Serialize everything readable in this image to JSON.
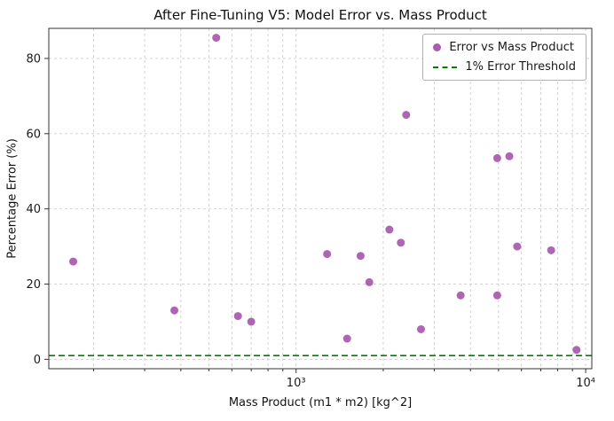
{
  "chart_data": {
    "type": "scatter",
    "title": "After Fine-Tuning V5: Model Error vs. Mass Product",
    "xlabel": "Mass Product (m1 * m2) [kg^2]",
    "ylabel": "Percentage Error (%)",
    "x_scale": "log",
    "xlim": [
      140,
      10500
    ],
    "ylim": [
      -2.5,
      88
    ],
    "y_ticks": [
      0,
      20,
      40,
      60,
      80
    ],
    "x_major_ticks": [
      1000,
      10000
    ],
    "x_major_labels": [
      "10³",
      "10⁴"
    ],
    "grid": true,
    "legend_position": "upper right",
    "series_label": "Error vs Mass Product",
    "point_color": "#a04ba4",
    "points": [
      [
        170,
        26
      ],
      [
        380,
        13
      ],
      [
        530,
        85.5
      ],
      [
        630,
        11.5
      ],
      [
        700,
        10
      ],
      [
        1280,
        28
      ],
      [
        1500,
        5.5
      ],
      [
        1670,
        27.5
      ],
      [
        1790,
        20.5
      ],
      [
        2100,
        34.5
      ],
      [
        2300,
        31
      ],
      [
        2400,
        65
      ],
      [
        2700,
        8
      ],
      [
        3700,
        17
      ],
      [
        4950,
        53.5
      ],
      [
        4950,
        17
      ],
      [
        5450,
        54
      ],
      [
        5800,
        30
      ],
      [
        7600,
        29
      ],
      [
        9300,
        2.5
      ]
    ],
    "threshold": {
      "value": 1,
      "label": "1% Error Threshold",
      "color": "#008000"
    }
  }
}
